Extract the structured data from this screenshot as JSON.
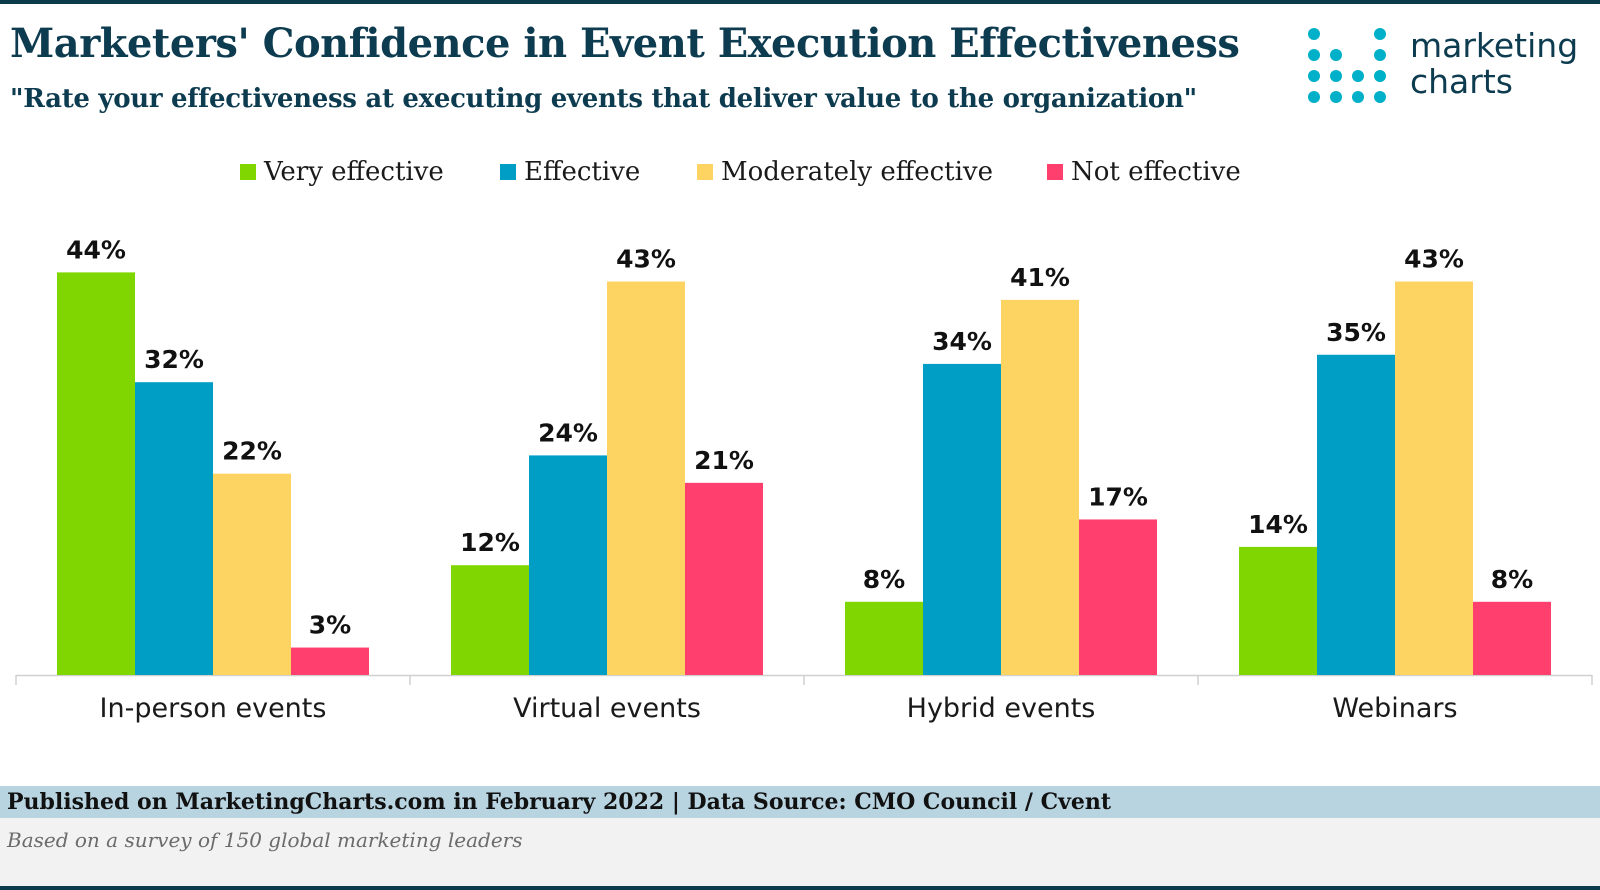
{
  "header": {
    "title": "Marketers' Confidence in Event Execution Effectiveness",
    "subtitle": "\"Rate your effectiveness at executing events that deliver value to the organization\""
  },
  "logo": {
    "line1": "marketing",
    "line2": "charts"
  },
  "colors": {
    "very_effective": "#80d600",
    "effective": "#009dc4",
    "moderately_effective": "#fdd462",
    "not_effective": "#ff3f6e",
    "title": "#0d3b4f",
    "logo_dots": "#00b0c8"
  },
  "chart_data": {
    "type": "bar",
    "title": "Marketers' Confidence in Event Execution Effectiveness",
    "subtitle": "\"Rate your effectiveness at executing events that deliver value to the organization\"",
    "categories": [
      "In-person events",
      "Virtual events",
      "Hybrid events",
      "Webinars"
    ],
    "series": [
      {
        "name": "Very effective",
        "values": [
          44,
          12,
          8,
          14
        ],
        "color": "#80d600"
      },
      {
        "name": "Effective",
        "values": [
          32,
          24,
          34,
          35
        ],
        "color": "#009dc4"
      },
      {
        "name": "Moderately effective",
        "values": [
          22,
          43,
          41,
          43
        ],
        "color": "#fdd462"
      },
      {
        "name": "Not effective",
        "values": [
          3,
          21,
          17,
          8
        ],
        "color": "#ff3f6e"
      }
    ],
    "value_suffix": "%",
    "ylim": [
      0,
      44
    ],
    "grid": false,
    "legend_position": "top-center",
    "xlabel": "",
    "ylabel": ""
  },
  "footer": {
    "source": "Published on MarketingCharts.com in February 2022 | Data Source: CMO Council / Cvent",
    "note": "Based on a survey of 150 global marketing leaders"
  }
}
